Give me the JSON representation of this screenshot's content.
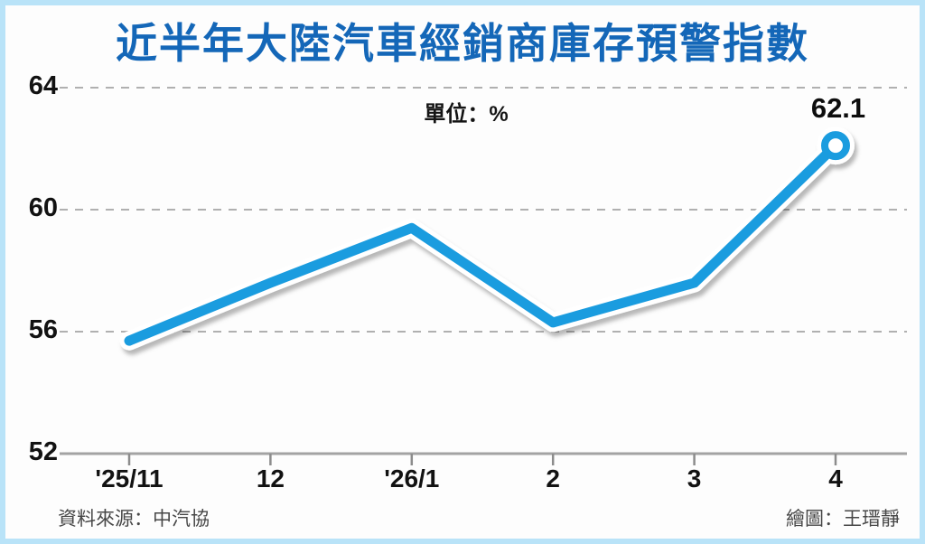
{
  "frame": {
    "border_color": "#b9e3f8",
    "background": "#fdfdfd"
  },
  "title": {
    "text": "近半年大陸汽車經銷商庫存預警指數",
    "color": "#1467b8"
  },
  "unit_label": "單位：%",
  "footer": {
    "source": "資料來源：中汽協",
    "credit": "繪圖：王瑨靜"
  },
  "chart_data": {
    "type": "line",
    "title": "近半年大陸汽車經銷商庫存預警指數",
    "unit": "%",
    "categories": [
      "'25/11",
      "12",
      "'26/1",
      "2",
      "3",
      "4"
    ],
    "values": [
      55.7,
      57.6,
      59.4,
      56.3,
      57.6,
      62.1
    ],
    "ylim": [
      52,
      64
    ],
    "yticks": [
      64,
      60,
      56,
      52
    ],
    "ytick_labels": [
      "64",
      "60",
      "56",
      "52"
    ],
    "grid": "dashed-horizontal",
    "legend": "none",
    "line_color": "#1a9cdf",
    "casing_color": "#ffffff",
    "grid_color": "#b0b0b0",
    "axis_color": "#a3a3a3",
    "annotation": {
      "text": "62.1",
      "point_index": 5
    }
  }
}
